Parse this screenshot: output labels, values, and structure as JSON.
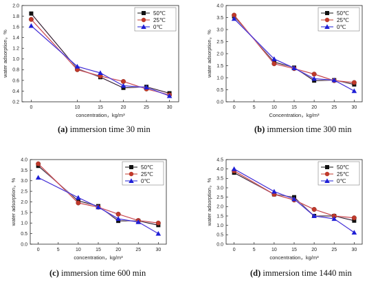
{
  "series_colors": {
    "50": "#111111",
    "25": "#c0392b",
    "0": "#1f1fd6"
  },
  "chart_data": [
    {
      "id": "a",
      "type": "line",
      "caption_letter": "(a)",
      "caption_text": " immersion time 30 min",
      "xlabel": "concentration，kg/m³",
      "ylabel": "water adsorption，%",
      "xlim": [
        -2,
        32
      ],
      "ylim": [
        0.2,
        2.0
      ],
      "xticks": [
        0,
        10,
        15,
        20,
        25,
        30
      ],
      "yticks": [
        0.2,
        0.4,
        0.6,
        0.8,
        1.0,
        1.2,
        1.4,
        1.6,
        1.8,
        2.0
      ],
      "ytick_labels": [
        "0.2",
        "0.4",
        "0.6",
        "0.8",
        "1.0",
        "1.2",
        "1.4",
        "1.6",
        "1.8",
        "2.0"
      ],
      "legend_position": "top-right",
      "x": [
        0,
        10,
        15,
        20,
        25,
        30
      ],
      "series": [
        {
          "name": "50℃",
          "marker": "square",
          "color_key": "50",
          "values": [
            1.85,
            0.82,
            0.66,
            0.46,
            0.48,
            0.36
          ]
        },
        {
          "name": "25℃",
          "marker": "circle",
          "color_key": "25",
          "values": [
            1.74,
            0.8,
            0.68,
            0.58,
            0.44,
            0.33
          ]
        },
        {
          "name": "0℃",
          "marker": "triangle",
          "color_key": "0",
          "values": [
            1.62,
            0.86,
            0.74,
            0.5,
            0.47,
            0.31
          ]
        }
      ]
    },
    {
      "id": "b",
      "type": "line",
      "caption_letter": "(b)",
      "caption_text": " immersion time 300 min",
      "xlabel": "Concentration，kg/m³",
      "ylabel": "water adsorption，%",
      "xlim": [
        -2,
        32
      ],
      "ylim": [
        0.0,
        4.0
      ],
      "xticks": [
        0,
        5,
        10,
        15,
        20,
        25,
        30
      ],
      "yticks": [
        0.0,
        0.5,
        1.0,
        1.5,
        2.0,
        2.5,
        3.0,
        3.5,
        4.0
      ],
      "ytick_labels": [
        "0.0",
        "0.5",
        "1.0",
        "1.5",
        "2.0",
        "2.5",
        "3.0",
        "3.5",
        "4.0"
      ],
      "legend_position": "top-right",
      "x": [
        0,
        10,
        15,
        20,
        25,
        30
      ],
      "series": [
        {
          "name": "50℃",
          "marker": "square",
          "color_key": "50",
          "values": [
            3.55,
            1.65,
            1.42,
            0.88,
            0.9,
            0.72
          ]
        },
        {
          "name": "25℃",
          "marker": "circle",
          "color_key": "25",
          "values": [
            3.6,
            1.58,
            1.38,
            1.15,
            0.88,
            0.8
          ]
        },
        {
          "name": "0℃",
          "marker": "triangle",
          "color_key": "0",
          "values": [
            3.45,
            1.78,
            1.4,
            0.96,
            0.9,
            0.45
          ]
        }
      ]
    },
    {
      "id": "c",
      "type": "line",
      "caption_letter": "(c)",
      "caption_text": " immersion time 600 min",
      "xlabel": "concentration，kg/m³",
      "ylabel": "water adsorption，%",
      "xlim": [
        -2,
        32
      ],
      "ylim": [
        0.0,
        4.0
      ],
      "xticks": [
        0,
        5,
        10,
        15,
        20,
        25,
        30
      ],
      "yticks": [
        0.0,
        0.5,
        1.0,
        1.5,
        2.0,
        2.5,
        3.0,
        3.5,
        4.0
      ],
      "ytick_labels": [
        "0.0",
        "0.5",
        "1.0",
        "1.5",
        "2.0",
        "2.5",
        "3.0",
        "3.5",
        "4.0"
      ],
      "legend_position": "top-right",
      "x": [
        0,
        10,
        15,
        20,
        25,
        30
      ],
      "series": [
        {
          "name": "50℃",
          "marker": "square",
          "color_key": "50",
          "values": [
            3.7,
            2.05,
            1.8,
            1.1,
            1.1,
            0.9
          ]
        },
        {
          "name": "25℃",
          "marker": "circle",
          "color_key": "25",
          "values": [
            3.8,
            1.95,
            1.75,
            1.42,
            1.12,
            1.0
          ]
        },
        {
          "name": "0℃",
          "marker": "triangle",
          "color_key": "0",
          "values": [
            3.15,
            2.2,
            1.75,
            1.2,
            1.05,
            0.5
          ]
        }
      ]
    },
    {
      "id": "d",
      "type": "line",
      "caption_letter": "(d)",
      "caption_text": " immersion time 1440 min",
      "xlabel": "concentration，kg/m³",
      "ylabel": "water adsorption，%",
      "xlim": [
        -2,
        32
      ],
      "ylim": [
        0.0,
        4.5
      ],
      "xticks": [
        0,
        5,
        10,
        15,
        20,
        25,
        30
      ],
      "yticks": [
        0.0,
        0.5,
        1.0,
        1.5,
        2.0,
        2.5,
        3.0,
        3.5,
        4.0,
        4.5
      ],
      "ytick_labels": [
        "0.0",
        "0.5",
        "1.0",
        "1.5",
        "2.0",
        "2.5",
        "3.0",
        "3.5",
        "4.0",
        "4.5"
      ],
      "legend_position": "top-right",
      "x": [
        0,
        10,
        15,
        20,
        25,
        30
      ],
      "series": [
        {
          "name": "50℃",
          "marker": "square",
          "color_key": "50",
          "values": [
            3.8,
            2.65,
            2.5,
            1.5,
            1.5,
            1.25
          ]
        },
        {
          "name": "25℃",
          "marker": "circle",
          "color_key": "25",
          "values": [
            3.9,
            2.65,
            2.35,
            1.85,
            1.5,
            1.4
          ]
        },
        {
          "name": "0℃",
          "marker": "triangle",
          "color_key": "0",
          "values": [
            4.0,
            2.8,
            2.4,
            1.5,
            1.35,
            0.62
          ]
        }
      ]
    }
  ]
}
